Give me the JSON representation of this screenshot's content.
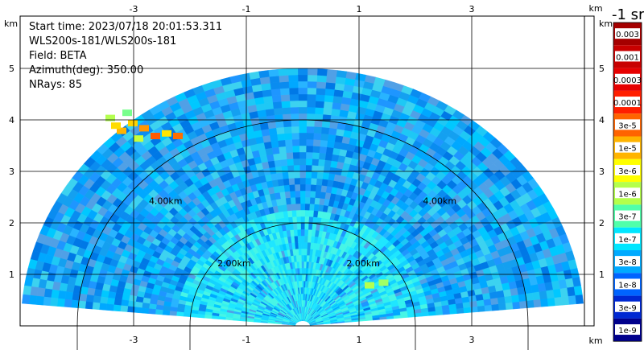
{
  "info": {
    "start_time": "Start time: 2023/07/18 20:01:53.311",
    "instrument": "WLS200s-181/WLS200s-181",
    "field": "Field: BETA",
    "azimuth": "Azimuth(deg): 350.00",
    "nrays": "NRays: 85"
  },
  "colorbar": {
    "title": "-1 sr",
    "labels": [
      "0.003",
      "0.001",
      "0.0003",
      "0.0001",
      "3e-5",
      "1e-5",
      "3e-6",
      "1e-6",
      "3e-7",
      "1e-7",
      "3e-8",
      "1e-8",
      "3e-9",
      "1e-9"
    ],
    "colors": [
      "#a50000",
      "#c80000",
      "#e60000",
      "#ff1e00",
      "#ff6400",
      "#ffb400",
      "#ffff00",
      "#b4ff4b",
      "#50ffaa",
      "#00e6ff",
      "#00aaff",
      "#0064ff",
      "#0028d2",
      "#00008c"
    ]
  },
  "chart_data": {
    "type": "heatmap",
    "description_units": "km",
    "x_axis": {
      "ticks": [
        -3,
        -1,
        1,
        3
      ],
      "unit_label": "km",
      "xlim": [
        -5.6,
        5.6
      ]
    },
    "y_axis": {
      "ticks": [
        1,
        2,
        3,
        4,
        5
      ],
      "unit_label": "km",
      "ylim": [
        0,
        5.4
      ]
    },
    "range_rings": [
      {
        "radius": 2.0,
        "label": "2.00km"
      },
      {
        "radius": 4.0,
        "label": "4.00km"
      }
    ],
    "sector": {
      "max_range": 5.0,
      "elevation_start_deg": 5,
      "elevation_end_deg": 175
    },
    "background_level": "1e-7",
    "grid": true
  }
}
